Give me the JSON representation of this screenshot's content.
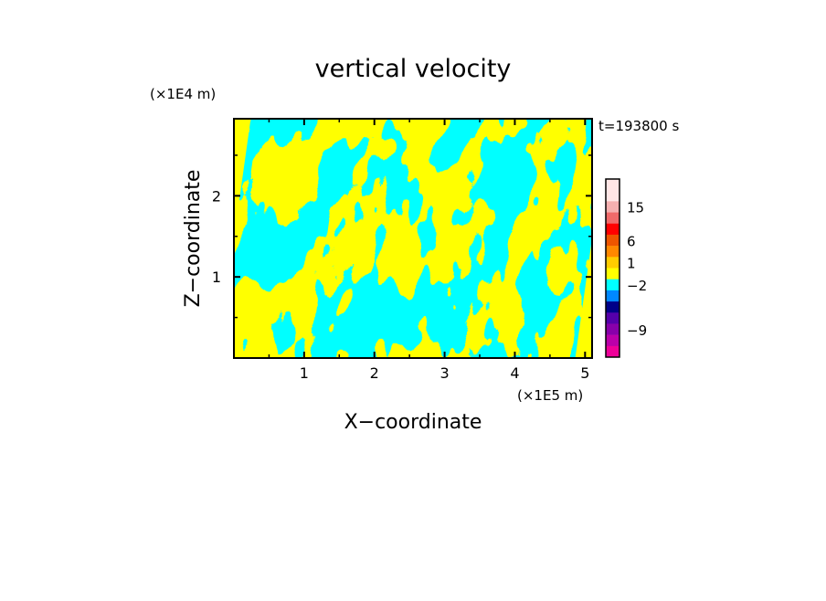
{
  "chart_data": {
    "type": "heatmap",
    "title": "vertical velocity",
    "xlabel": "X−coordinate",
    "ylabel": "Z−coordinate",
    "x_scale_label": "(×1E5 m)",
    "y_scale_label": "(×1E4 m)",
    "time_label": "t=193800 s",
    "x_ticks": [
      "1",
      "2",
      "3",
      "4",
      "5"
    ],
    "y_ticks": [
      "1",
      "2"
    ],
    "xlim": [
      0,
      5.1
    ],
    "ylim": [
      0,
      2.95
    ],
    "field_colors": {
      "positive": "#ffff00",
      "negative": "#00ffff"
    },
    "colorbar": {
      "tick_labels": [
        "15",
        "6",
        "1",
        "−2",
        "−9"
      ],
      "bands_top_to_bottom": [
        "#ffe6e6",
        "#ffe6e6",
        "#f5b0b0",
        "#f06a6a",
        "#ff0000",
        "#ee5500",
        "#ff8800",
        "#ffcc00",
        "#ffff00",
        "#00ffff",
        "#0088ff",
        "#000088",
        "#5500aa",
        "#8800aa",
        "#bb00aa",
        "#ee0099"
      ]
    }
  }
}
